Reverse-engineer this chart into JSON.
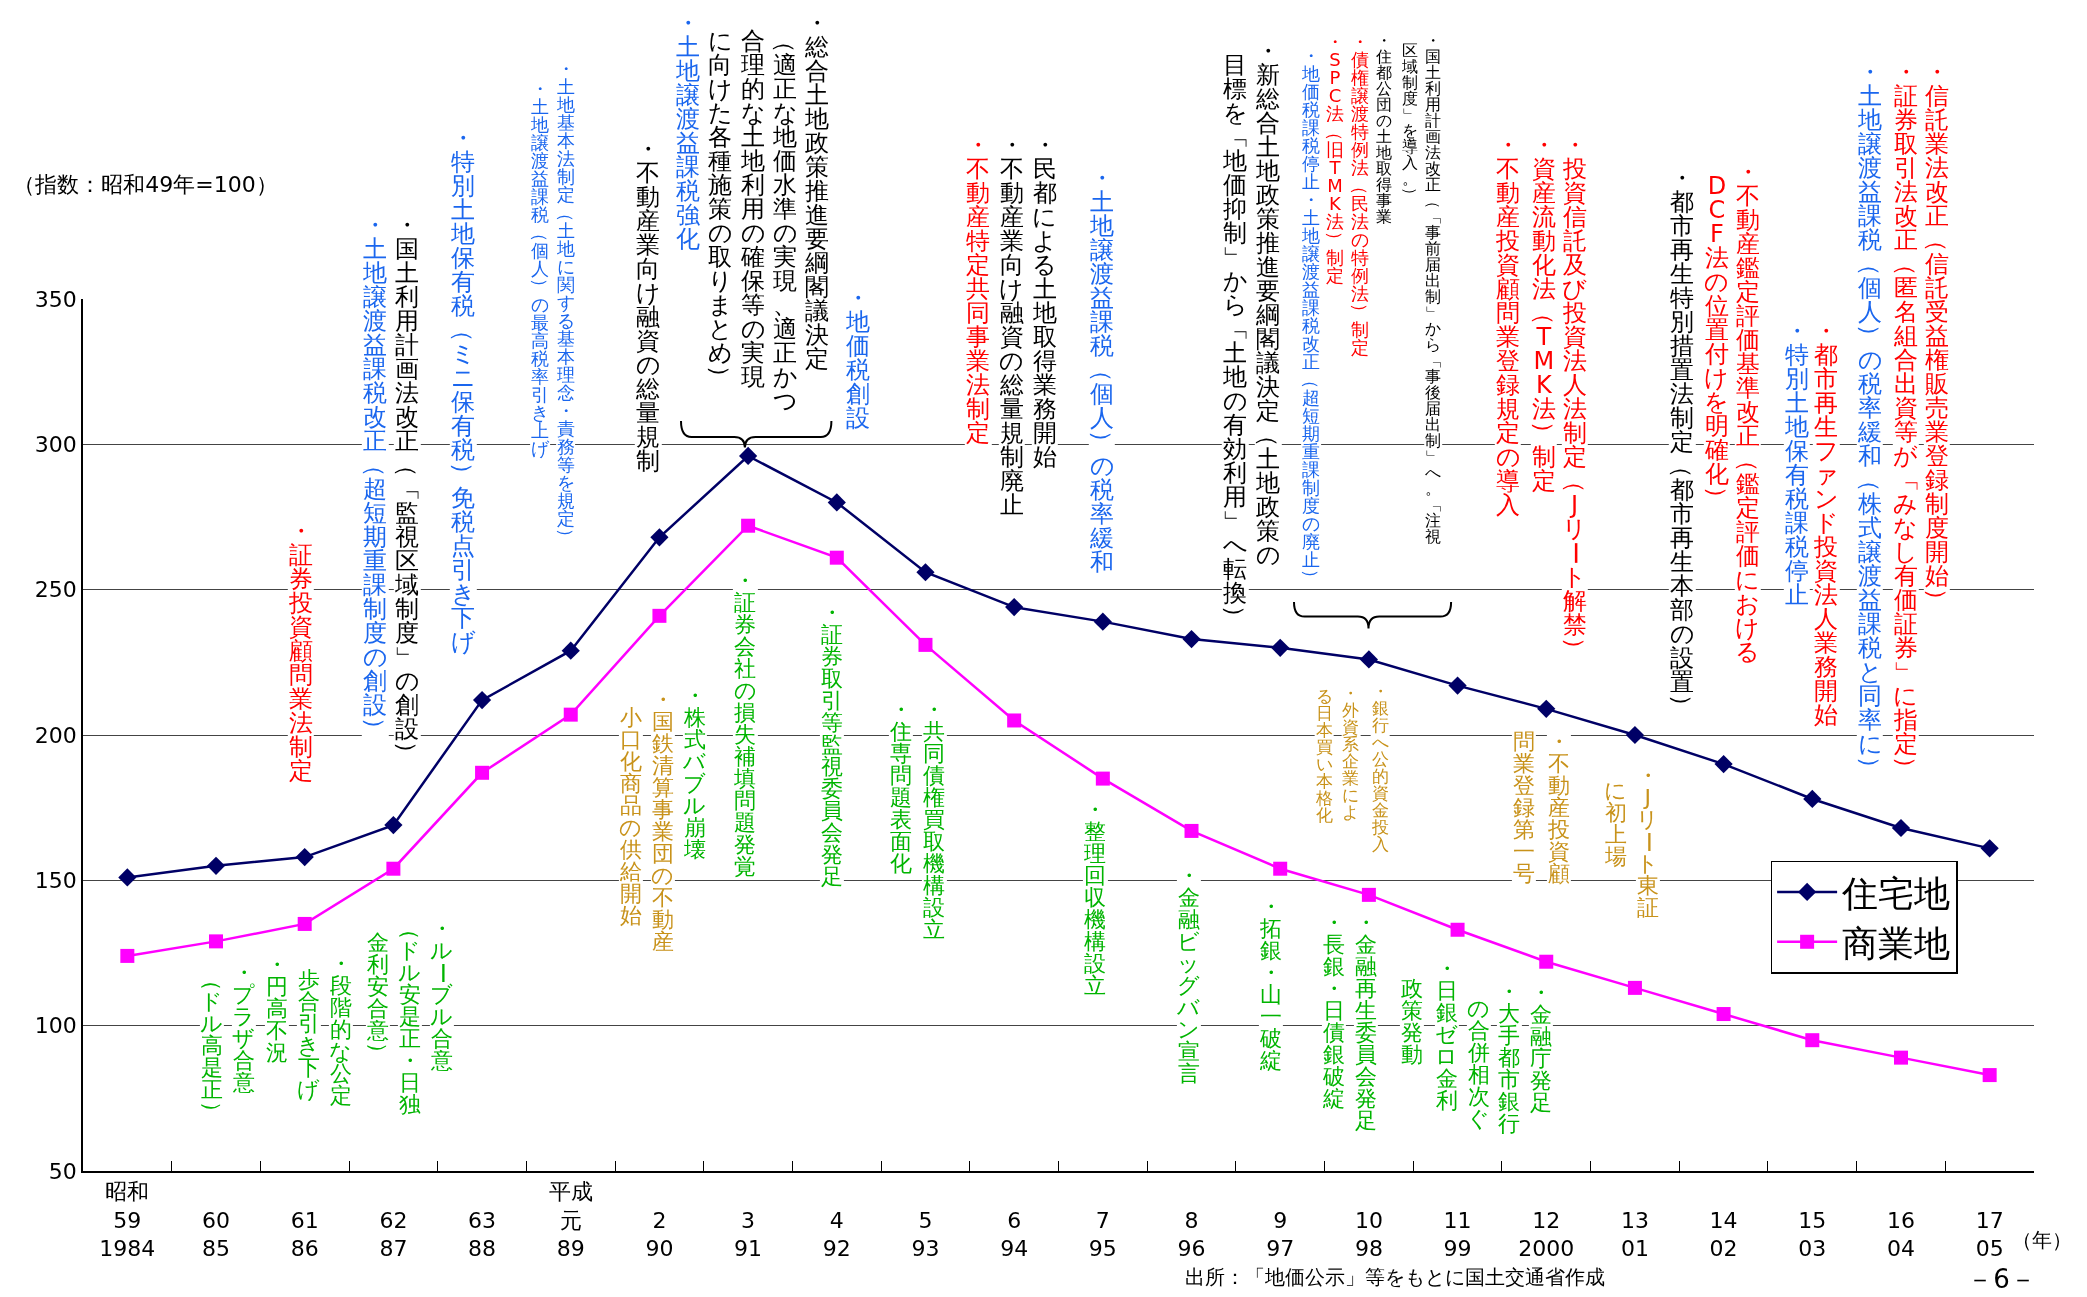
{
  "chart_data": {
    "type": "line",
    "ylabel": "（指数：昭和49年=100）",
    "xlabel": "（年）",
    "categories": [
      "昭和\n59\n1984",
      "60\n85",
      "61\n86",
      "62\n87",
      "63\n88",
      "平成元\n89",
      "2\n90",
      "3\n91",
      "4\n92",
      "5\n93",
      "6\n94",
      "7\n95",
      "8\n96",
      "9\n97",
      "10\n98",
      "11\n99",
      "12\n2000",
      "13\n01",
      "14\n02",
      "15\n03",
      "16\n04",
      "17\n05"
    ],
    "series": [
      {
        "name": "住宅地",
        "color": "#000066",
        "marker": "diamond",
        "values": [
          151,
          155,
          158,
          169,
          212,
          229,
          268,
          296,
          280,
          256,
          244,
          239,
          233,
          230,
          226,
          217,
          209,
          200,
          190,
          178,
          168,
          161
        ]
      },
      {
        "name": "商業地",
        "color": "#ff00ff",
        "marker": "square",
        "values": [
          124,
          129,
          135,
          154,
          187,
          207,
          241,
          272,
          261,
          231,
          205,
          185,
          167,
          154,
          145,
          133,
          122,
          113,
          104,
          95,
          89,
          83
        ]
      }
    ],
    "ylim": [
      50,
      350
    ],
    "yticks": [
      50,
      100,
      150,
      200,
      250,
      300,
      350
    ],
    "grid": "y",
    "legend": "right",
    "annotations": [
      "・証券投資顧問業法制定",
      "・土地譲渡益課税改正（超短期重課制度の創設）",
      "・国土利用計画法改正（「監視区域制度」の創設）",
      "・特別土地保有税（ミニ保有税）免税点引き下げ",
      "・土地基本法制定（土地に関する基本理念・責務等を規定）",
      "・土地譲渡益課税（個人）の最高税率引き上げ",
      "・不動産業向け融資の総量規制",
      "・土地譲渡益課税強化",
      "・総合土地政策推進要綱閣議決定",
      "（適正な地価水準の実現、適正かつ",
      "合理的な土地利用の確保等の実現",
      "に向けた各種施策の取りまとめ）",
      "・地価税創設",
      "・不動産特定共同事業法制定",
      "・不動産業向け融資の総量規制廃止",
      "・民都による土地取得業務開始",
      "・土地譲渡益課税（個人）の税率緩和",
      "・新総合土地政策推進要綱閣議決定（土地政策の",
      "目標を「地価抑制」から「土地の有効利用」へ転換）",
      "・地価税課税停止・土地譲渡益課税改正（超短期重課制度の廃止）",
      "・SPC法（旧TMK法）制定",
      "・債権譲渡特例法（民法の特例法）制定",
      "・住都公団の土地取得事業",
      "・国土利用計画法改正（「事前届出制」から「事後届出制」へ。「注視",
      "区域制度」を導入。）",
      "・不動産投資顧問業登録規定の導入",
      "・資産流動化法（TMK法）制定",
      "・投資信託及び投資法人法制定（Jリート解禁）",
      "・都市再生特別措置法制定（都市再生本部の設置）",
      "・不動産鑑定評価基準改正（鑑定評価における",
      "DCF法の位置付けを明確化）",
      "・特別土地保有税課税停止",
      "・都市再生ファンド投資法人業務開始",
      "・土地譲渡益課税（個人）の税率緩和（株式譲渡益課税と同率に）",
      "・証券取引法改正（匿名組合出資等が「みなし有価証券」に指定）",
      "・信託業法改正（信託受益権販売業登録制度開始）",
      "・プラザ合意",
      "（ドル高是正）",
      "・円高不況",
      "・段階的な公定",
      "歩合引き下げ",
      "・ルーブル合意",
      "（ドル安是正・日独",
      "金利安合意）",
      "・国鉄清算事業団の不動産",
      "小口化商品の供給開始",
      "・株式バブル崩壊",
      "・証券会社の損失補填問題発覚",
      "・証券取引等監視委員会発足",
      "・住専問題表面化",
      "・共同債権買取機構設立",
      "・整理回収機構設立",
      "・金融ビッグバン宣言",
      "・拓銀・山一破綻",
      "・長銀・日債銀破綻",
      "・金融再生委員会発足",
      "・外資系企業によ",
      "る日本買い本格化",
      "・銀行へ公的資金投入",
      "・日銀ゼロ金利",
      "政策発動",
      "・大手都市銀行",
      "の合併相次ぐ",
      "・金融庁発足",
      "・不動産投資顧",
      "問業登録第一号",
      "・Jリート東証",
      "に初上場",
      "出所：「地価公示」等をもとに国土交通省作成",
      "－6－"
    ]
  }
}
